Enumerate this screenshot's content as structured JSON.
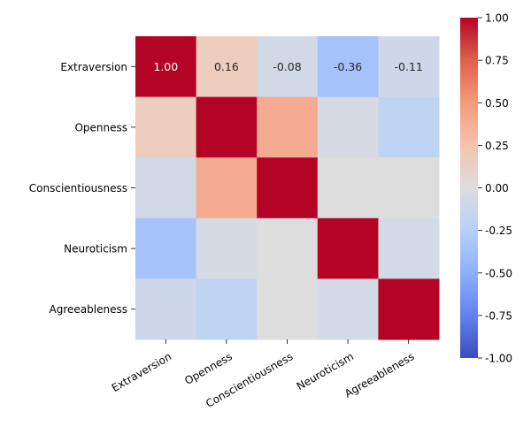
{
  "chart_data": {
    "type": "heatmap",
    "title": "",
    "xlabel": "",
    "ylabel": "",
    "rows": [
      "Extraversion",
      "Openness",
      "Conscientiousness",
      "Neuroticism",
      "Agreeableness"
    ],
    "columns": [
      "Extraversion",
      "Openness",
      "Conscientiousness",
      "Neuroticism",
      "Agreeableness"
    ],
    "values": [
      [
        1.0,
        0.16,
        -0.08,
        -0.36,
        -0.11
      ],
      [
        0.16,
        1.0,
        0.4,
        -0.05,
        -0.2
      ],
      [
        -0.08,
        0.4,
        1.0,
        0.0,
        0.0
      ],
      [
        -0.36,
        -0.05,
        0.0,
        1.0,
        -0.07
      ],
      [
        -0.11,
        -0.2,
        0.0,
        -0.07,
        1.0
      ]
    ],
    "annotations_row": 0,
    "annotations": [
      "1.00",
      "0.16",
      "-0.08",
      "-0.36",
      "-0.11"
    ],
    "colormap": "coolwarm",
    "vmin": -1.0,
    "vmax": 1.0,
    "colorbar_ticks": [
      "-1.00",
      "-0.75",
      "-0.50",
      "-0.25",
      "0.00",
      "0.25",
      "0.50",
      "0.75",
      "1.00"
    ]
  }
}
